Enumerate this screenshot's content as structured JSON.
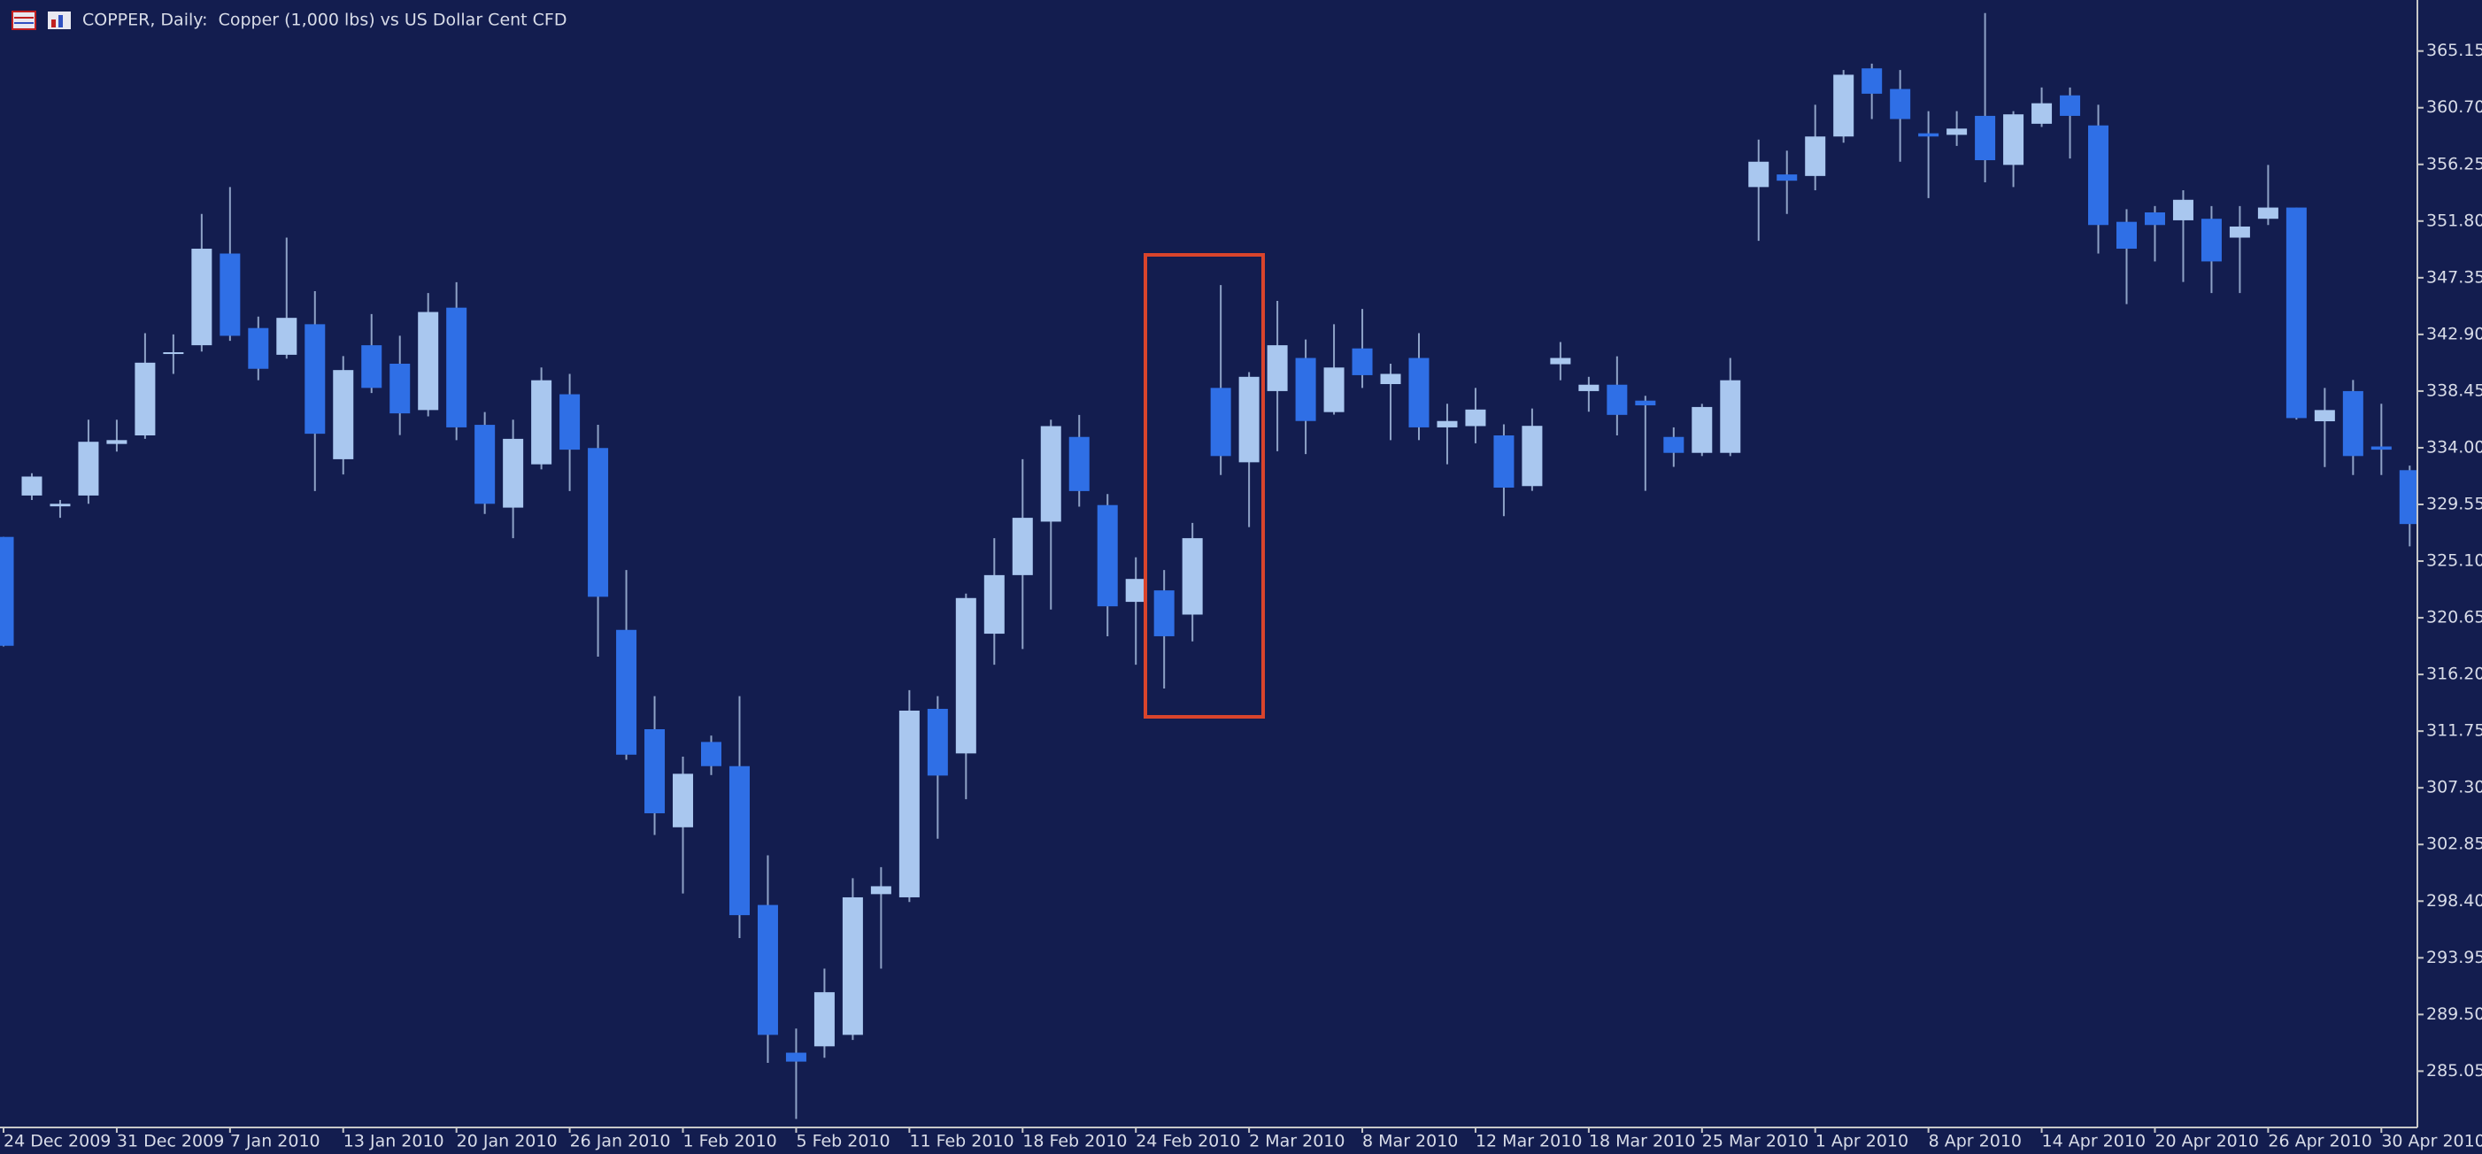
{
  "chart_data": {
    "type": "candlestick",
    "title": "COPPER, Daily:  Copper (1,000 lbs) vs US Dollar Cent CFD",
    "categories": [
      "24 Dec 2009",
      null,
      null,
      null,
      "31 Dec 2009",
      null,
      null,
      null,
      "7 Jan 2010",
      null,
      null,
      null,
      "13 Jan 2010",
      null,
      null,
      null,
      "20 Jan 2010",
      null,
      null,
      null,
      "26 Jan 2010",
      null,
      null,
      null,
      "1 Feb 2010",
      null,
      null,
      null,
      "5 Feb 2010",
      null,
      null,
      null,
      "11 Feb 2010",
      null,
      null,
      null,
      "18 Feb 2010",
      null,
      null,
      null,
      "24 Feb 2010",
      null,
      null,
      null,
      "2 Mar 2010",
      null,
      null,
      null,
      "8 Mar 2010",
      null,
      null,
      null,
      "12 Mar 2010",
      null,
      null,
      null,
      "18 Mar 2010",
      null,
      null,
      null,
      "25 Mar 2010",
      null,
      null,
      null,
      "1 Apr 2010",
      null,
      null,
      null,
      "8 Apr 2010",
      null,
      null,
      null,
      "14 Apr 2010",
      null,
      null,
      null,
      "20 Apr 2010",
      null,
      null,
      null,
      "26 Apr 2010",
      null,
      null,
      null,
      "30 Apr 2010",
      null
    ],
    "open": [
      327.0,
      330.25,
      329.4,
      330.25,
      334.3,
      334.97,
      341.4,
      342.05,
      349.25,
      343.4,
      341.3,
      343.7,
      333.1,
      342.05,
      340.6,
      336.96,
      345.0,
      335.8,
      329.3,
      332.7,
      338.2,
      333.98,
      319.7,
      311.9,
      304.2,
      310.9,
      309.0,
      298.1,
      286.5,
      287.0,
      287.9,
      298.95,
      298.7,
      313.5,
      310.0,
      319.4,
      324.0,
      328.2,
      334.85,
      329.5,
      321.9,
      322.8,
      320.9,
      338.7,
      332.86,
      338.45,
      341.05,
      336.8,
      341.8,
      339.0,
      341.05,
      335.6,
      335.7,
      334.97,
      330.99,
      340.56,
      338.45,
      338.95,
      337.7,
      334.85,
      333.6,
      333.6,
      354.47,
      355.46,
      355.34,
      358.44,
      363.79,
      362.17,
      358.69,
      358.57,
      360.06,
      356.21,
      359.44,
      361.67,
      359.31,
      351.74,
      352.48,
      351.86,
      351.98,
      350.5,
      351.98,
      352.86,
      336.08,
      338.45,
      334.1,
      332.24
    ],
    "high": [
      327.0,
      332.0,
      329.9,
      336.2,
      336.2,
      343.0,
      342.9,
      352.36,
      354.47,
      344.3,
      350.5,
      346.3,
      341.2,
      344.5,
      342.8,
      346.15,
      347.0,
      336.8,
      336.2,
      340.3,
      339.8,
      335.8,
      324.4,
      314.5,
      309.75,
      311.4,
      314.5,
      302.0,
      288.4,
      293.1,
      300.2,
      301.07,
      314.97,
      314.5,
      322.55,
      326.9,
      333.1,
      336.2,
      336.58,
      330.37,
      325.4,
      324.4,
      328.1,
      346.77,
      339.94,
      345.53,
      342.5,
      343.7,
      344.9,
      340.6,
      343.0,
      337.45,
      338.7,
      335.84,
      337.08,
      342.3,
      339.57,
      341.18,
      338.08,
      335.6,
      337.45,
      341.05,
      358.2,
      357.33,
      360.93,
      363.66,
      364.16,
      363.66,
      360.43,
      360.43,
      368.13,
      360.43,
      362.29,
      362.29,
      360.93,
      352.73,
      352.98,
      354.22,
      352.98,
      352.98,
      356.21,
      352.86,
      338.7,
      339.32,
      337.45,
      332.6
    ],
    "low": [
      318.4,
      329.9,
      328.5,
      329.6,
      333.7,
      334.7,
      339.8,
      341.55,
      342.4,
      339.3,
      341.0,
      330.6,
      331.9,
      338.3,
      335.0,
      336.46,
      334.6,
      328.8,
      326.9,
      332.3,
      330.6,
      317.6,
      309.5,
      303.6,
      299.0,
      308.3,
      295.5,
      285.7,
      281.3,
      286.1,
      287.5,
      293.1,
      298.33,
      303.3,
      306.4,
      316.96,
      318.2,
      321.3,
      329.38,
      319.2,
      316.96,
      315.1,
      318.8,
      331.86,
      327.77,
      333.73,
      333.5,
      336.6,
      338.7,
      334.6,
      334.6,
      332.7,
      334.35,
      328.63,
      330.62,
      339.3,
      336.83,
      334.97,
      330.62,
      332.5,
      333.35,
      333.35,
      350.25,
      352.36,
      354.22,
      357.95,
      359.81,
      356.46,
      353.6,
      357.7,
      354.84,
      354.47,
      359.19,
      356.71,
      349.25,
      345.28,
      348.63,
      347.02,
      346.15,
      346.15,
      351.49,
      336.21,
      332.49,
      331.86,
      331.86,
      326.26
    ],
    "close": [
      318.45,
      331.74,
      329.6,
      334.47,
      334.6,
      340.68,
      341.5,
      349.63,
      342.79,
      340.2,
      344.2,
      335.1,
      340.1,
      338.7,
      336.7,
      344.66,
      335.6,
      329.6,
      334.7,
      339.3,
      333.85,
      322.3,
      309.9,
      305.3,
      308.4,
      309.0,
      297.3,
      287.9,
      285.8,
      291.25,
      298.7,
      299.57,
      313.36,
      308.26,
      322.2,
      324.0,
      328.5,
      335.7,
      330.6,
      321.55,
      323.7,
      319.2,
      326.9,
      333.35,
      339.57,
      342.05,
      336.1,
      340.3,
      339.7,
      339.8,
      335.6,
      336.1,
      337.0,
      330.87,
      335.72,
      341.05,
      338.95,
      336.58,
      337.33,
      333.6,
      337.2,
      339.3,
      356.46,
      354.97,
      358.44,
      363.29,
      361.8,
      359.81,
      358.44,
      359.06,
      356.58,
      360.18,
      361.05,
      360.06,
      351.49,
      349.63,
      351.49,
      353.47,
      348.63,
      351.37,
      352.86,
      336.33,
      336.96,
      333.35,
      333.85,
      328.01
    ],
    "up_color": "#a9c7ef",
    "down_color": "#2f6fe6",
    "wick_color": "#8ea2c6",
    "ylim": [
      280.7,
      368.88
    ],
    "yticks": [
      365.15,
      {
        "value": 360.7,
        "label": "360.70"
      },
      356.25,
      {
        "value": 351.8,
        "label": "351.80"
      },
      347.35,
      {
        "value": 342.9,
        "label": "342.90"
      },
      338.45,
      {
        "value": 334.0,
        "label": "334.00"
      },
      329.55,
      {
        "value": 325.1,
        "label": "325.10"
      },
      320.65,
      {
        "value": 316.2,
        "label": "316.20"
      },
      311.75,
      {
        "value": 307.3,
        "label": "307.30"
      },
      302.85,
      {
        "value": 298.4,
        "label": "298.40"
      },
      293.95,
      {
        "value": 289.5,
        "label": "289.50"
      },
      285.05
    ]
  }
}
